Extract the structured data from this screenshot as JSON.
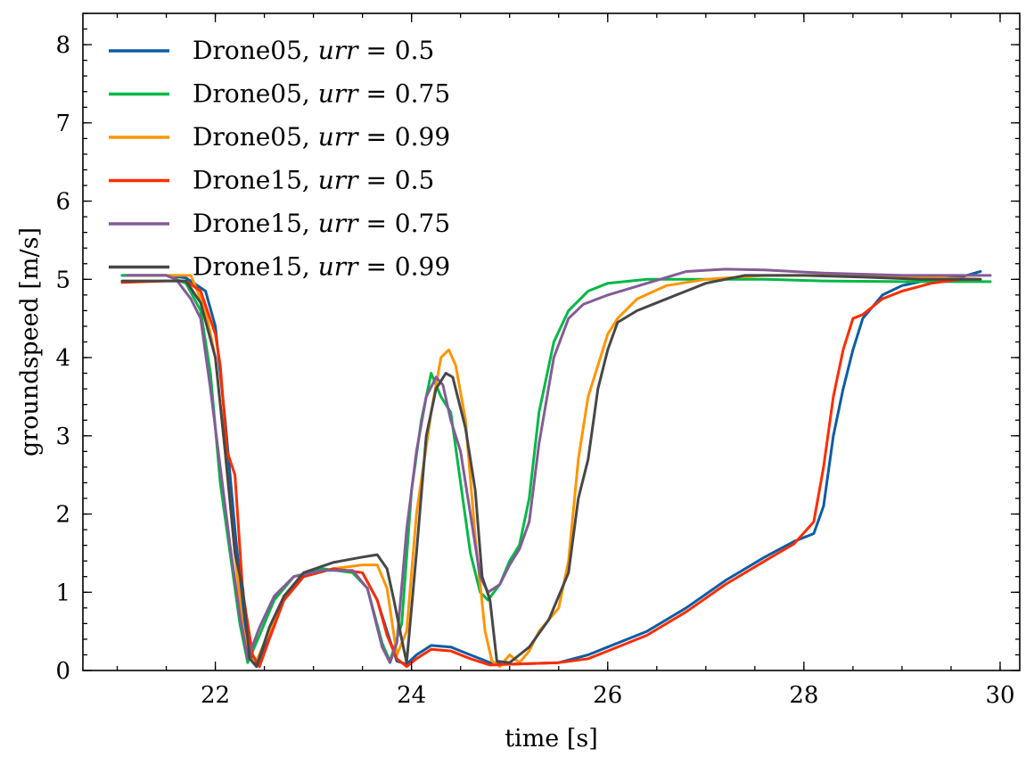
{
  "chart_data": {
    "type": "line",
    "title": "",
    "xlabel": "time [s]",
    "ylabel": "groundspeed [m/s]",
    "xlim": [
      20.65,
      30.2
    ],
    "ylim": [
      0,
      8.4
    ],
    "xticks": [
      22,
      24,
      26,
      28,
      30
    ],
    "yticks": [
      0,
      1,
      2,
      3,
      4,
      5,
      6,
      7,
      8
    ],
    "x_minor_step": 0.5,
    "y_minor_step": 0.2,
    "grid": false,
    "legend_position": "top-left",
    "series": [
      {
        "name": "Drone05, urr = 0.5",
        "legend_prefix": "Drone05, ",
        "legend_var": "urr",
        "legend_suffix": " = 0.5",
        "color": "#0C5DA5",
        "points": [
          [
            21.05,
            5.05
          ],
          [
            21.5,
            5.05
          ],
          [
            21.7,
            5.02
          ],
          [
            21.9,
            4.85
          ],
          [
            22.0,
            4.4
          ],
          [
            22.1,
            3.2
          ],
          [
            22.2,
            1.8
          ],
          [
            22.28,
            0.8
          ],
          [
            22.35,
            0.2
          ],
          [
            22.42,
            0.05
          ],
          [
            22.55,
            0.45
          ],
          [
            22.7,
            0.9
          ],
          [
            22.9,
            1.2
          ],
          [
            23.2,
            1.3
          ],
          [
            23.5,
            1.25
          ],
          [
            23.65,
            0.9
          ],
          [
            23.75,
            0.5
          ],
          [
            23.85,
            0.12
          ],
          [
            23.95,
            0.08
          ],
          [
            24.05,
            0.2
          ],
          [
            24.2,
            0.32
          ],
          [
            24.4,
            0.3
          ],
          [
            24.6,
            0.2
          ],
          [
            24.8,
            0.1
          ],
          [
            25.0,
            0.08
          ],
          [
            25.5,
            0.1
          ],
          [
            25.8,
            0.2
          ],
          [
            26.0,
            0.3
          ],
          [
            26.4,
            0.5
          ],
          [
            26.8,
            0.8
          ],
          [
            27.2,
            1.15
          ],
          [
            27.6,
            1.45
          ],
          [
            27.9,
            1.65
          ],
          [
            28.1,
            1.75
          ],
          [
            28.2,
            2.1
          ],
          [
            28.3,
            3.0
          ],
          [
            28.4,
            3.6
          ],
          [
            28.5,
            4.1
          ],
          [
            28.6,
            4.5
          ],
          [
            28.8,
            4.8
          ],
          [
            29.0,
            4.92
          ],
          [
            29.3,
            5.0
          ],
          [
            29.6,
            5.03
          ],
          [
            29.8,
            5.1
          ]
        ]
      },
      {
        "name": "Drone05, urr = 0.75",
        "legend_prefix": "Drone05, ",
        "legend_var": "urr",
        "legend_suffix": " = 0.75",
        "color": "#00B945",
        "points": [
          [
            21.05,
            5.05
          ],
          [
            21.5,
            5.05
          ],
          [
            21.7,
            4.95
          ],
          [
            21.85,
            4.6
          ],
          [
            21.95,
            3.8
          ],
          [
            22.05,
            2.4
          ],
          [
            22.15,
            1.5
          ],
          [
            22.25,
            0.6
          ],
          [
            22.33,
            0.1
          ],
          [
            22.45,
            0.45
          ],
          [
            22.6,
            0.9
          ],
          [
            22.8,
            1.2
          ],
          [
            23.1,
            1.3
          ],
          [
            23.4,
            1.25
          ],
          [
            23.55,
            1.05
          ],
          [
            23.7,
            0.35
          ],
          [
            23.78,
            0.12
          ],
          [
            23.9,
            0.6
          ],
          [
            24.0,
            2.3
          ],
          [
            24.1,
            3.2
          ],
          [
            24.2,
            3.8
          ],
          [
            24.3,
            3.5
          ],
          [
            24.4,
            3.3
          ],
          [
            24.5,
            2.4
          ],
          [
            24.6,
            1.5
          ],
          [
            24.7,
            1.0
          ],
          [
            24.78,
            0.9
          ],
          [
            24.9,
            1.1
          ],
          [
            25.0,
            1.4
          ],
          [
            25.1,
            1.6
          ],
          [
            25.2,
            2.2
          ],
          [
            25.3,
            3.3
          ],
          [
            25.45,
            4.2
          ],
          [
            25.6,
            4.6
          ],
          [
            25.8,
            4.85
          ],
          [
            26.0,
            4.95
          ],
          [
            26.4,
            5.0
          ],
          [
            27.0,
            5.0
          ],
          [
            27.6,
            5.0
          ],
          [
            28.2,
            4.98
          ],
          [
            29.0,
            4.97
          ],
          [
            29.9,
            4.97
          ]
        ]
      },
      {
        "name": "Drone05, urr = 0.99",
        "legend_prefix": "Drone05, ",
        "legend_var": "urr",
        "legend_suffix": " = 0.99",
        "color": "#FF9500",
        "points": [
          [
            21.1,
            5.05
          ],
          [
            21.5,
            5.05
          ],
          [
            21.75,
            5.05
          ],
          [
            21.9,
            4.6
          ],
          [
            22.0,
            4.0
          ],
          [
            22.1,
            2.8
          ],
          [
            22.2,
            1.5
          ],
          [
            22.28,
            0.55
          ],
          [
            22.35,
            0.15
          ],
          [
            22.42,
            0.12
          ],
          [
            22.55,
            0.5
          ],
          [
            22.7,
            0.95
          ],
          [
            22.9,
            1.2
          ],
          [
            23.2,
            1.3
          ],
          [
            23.5,
            1.35
          ],
          [
            23.65,
            1.35
          ],
          [
            23.75,
            1.05
          ],
          [
            23.85,
            0.2
          ],
          [
            23.95,
            0.5
          ],
          [
            24.05,
            2.0
          ],
          [
            24.2,
            3.3
          ],
          [
            24.3,
            4.0
          ],
          [
            24.38,
            4.1
          ],
          [
            24.45,
            3.9
          ],
          [
            24.55,
            3.2
          ],
          [
            24.65,
            1.7
          ],
          [
            24.75,
            0.5
          ],
          [
            24.82,
            0.12
          ],
          [
            24.9,
            0.05
          ],
          [
            25.0,
            0.2
          ],
          [
            25.1,
            0.1
          ],
          [
            25.2,
            0.25
          ],
          [
            25.3,
            0.5
          ],
          [
            25.5,
            0.8
          ],
          [
            25.6,
            1.4
          ],
          [
            25.7,
            2.7
          ],
          [
            25.8,
            3.5
          ],
          [
            25.9,
            3.9
          ],
          [
            26.0,
            4.3
          ],
          [
            26.1,
            4.5
          ],
          [
            26.3,
            4.75
          ],
          [
            26.6,
            4.92
          ],
          [
            27.0,
            5.0
          ],
          [
            27.6,
            5.05
          ],
          [
            28.2,
            5.05
          ],
          [
            29.0,
            5.03
          ],
          [
            29.8,
            5.0
          ]
        ]
      },
      {
        "name": "Drone15, urr = 0.5",
        "legend_prefix": "Drone15, ",
        "legend_var": "urr",
        "legend_suffix": " = 0.5",
        "color": "#FF2C00",
        "points": [
          [
            21.05,
            4.96
          ],
          [
            21.5,
            4.98
          ],
          [
            21.7,
            4.98
          ],
          [
            21.85,
            4.85
          ],
          [
            22.0,
            4.3
          ],
          [
            22.05,
            3.9
          ],
          [
            22.12,
            2.8
          ],
          [
            22.2,
            2.5
          ],
          [
            22.28,
            1.0
          ],
          [
            22.38,
            0.2
          ],
          [
            22.45,
            0.05
          ],
          [
            22.55,
            0.4
          ],
          [
            22.7,
            0.9
          ],
          [
            22.9,
            1.2
          ],
          [
            23.2,
            1.3
          ],
          [
            23.5,
            1.25
          ],
          [
            23.65,
            0.9
          ],
          [
            23.75,
            0.45
          ],
          [
            23.85,
            0.15
          ],
          [
            23.95,
            0.05
          ],
          [
            24.05,
            0.15
          ],
          [
            24.2,
            0.27
          ],
          [
            24.4,
            0.25
          ],
          [
            24.6,
            0.15
          ],
          [
            24.8,
            0.07
          ],
          [
            25.0,
            0.08
          ],
          [
            25.5,
            0.1
          ],
          [
            25.8,
            0.15
          ],
          [
            26.0,
            0.25
          ],
          [
            26.4,
            0.45
          ],
          [
            26.8,
            0.75
          ],
          [
            27.2,
            1.1
          ],
          [
            27.6,
            1.4
          ],
          [
            27.9,
            1.62
          ],
          [
            28.1,
            1.9
          ],
          [
            28.2,
            2.6
          ],
          [
            28.3,
            3.5
          ],
          [
            28.4,
            4.1
          ],
          [
            28.5,
            4.5
          ],
          [
            28.6,
            4.55
          ],
          [
            28.8,
            4.75
          ],
          [
            29.0,
            4.85
          ],
          [
            29.3,
            4.95
          ],
          [
            29.6,
            5.0
          ],
          [
            29.75,
            5.0
          ]
        ]
      },
      {
        "name": "Drone15, urr = 0.75",
        "legend_prefix": "Drone15, ",
        "legend_var": "urr",
        "legend_suffix": " = 0.75",
        "color": "#845B97",
        "points": [
          [
            21.1,
            5.05
          ],
          [
            21.5,
            5.05
          ],
          [
            21.6,
            5.0
          ],
          [
            21.75,
            4.75
          ],
          [
            21.85,
            4.5
          ],
          [
            21.95,
            3.6
          ],
          [
            22.05,
            2.6
          ],
          [
            22.15,
            1.6
          ],
          [
            22.25,
            0.7
          ],
          [
            22.33,
            0.15
          ],
          [
            22.45,
            0.55
          ],
          [
            22.6,
            0.95
          ],
          [
            22.8,
            1.2
          ],
          [
            23.1,
            1.28
          ],
          [
            23.4,
            1.28
          ],
          [
            23.55,
            1.05
          ],
          [
            23.7,
            0.3
          ],
          [
            23.78,
            0.1
          ],
          [
            23.85,
            0.35
          ],
          [
            23.95,
            1.8
          ],
          [
            24.05,
            2.8
          ],
          [
            24.15,
            3.5
          ],
          [
            24.25,
            3.75
          ],
          [
            24.32,
            3.65
          ],
          [
            24.4,
            3.2
          ],
          [
            24.5,
            2.8
          ],
          [
            24.6,
            2.0
          ],
          [
            24.7,
            1.2
          ],
          [
            24.78,
            1.0
          ],
          [
            24.9,
            1.1
          ],
          [
            25.0,
            1.35
          ],
          [
            25.1,
            1.55
          ],
          [
            25.2,
            1.9
          ],
          [
            25.3,
            2.9
          ],
          [
            25.45,
            4.0
          ],
          [
            25.6,
            4.5
          ],
          [
            25.75,
            4.68
          ],
          [
            26.0,
            4.8
          ],
          [
            26.4,
            4.95
          ],
          [
            26.8,
            5.1
          ],
          [
            27.2,
            5.13
          ],
          [
            27.6,
            5.12
          ],
          [
            28.2,
            5.08
          ],
          [
            29.0,
            5.05
          ],
          [
            29.9,
            5.05
          ]
        ]
      },
      {
        "name": "Drone15, urr = 0.99",
        "legend_prefix": "Drone15, ",
        "legend_var": "urr",
        "legend_suffix": " = 0.99",
        "color": "#474747",
        "points": [
          [
            21.05,
            4.98
          ],
          [
            21.5,
            4.98
          ],
          [
            21.7,
            4.98
          ],
          [
            21.85,
            4.7
          ],
          [
            22.0,
            4.0
          ],
          [
            22.1,
            2.8
          ],
          [
            22.2,
            1.5
          ],
          [
            22.28,
            1.05
          ],
          [
            22.35,
            0.15
          ],
          [
            22.42,
            0.05
          ],
          [
            22.55,
            0.55
          ],
          [
            22.7,
            0.95
          ],
          [
            22.9,
            1.25
          ],
          [
            23.2,
            1.38
          ],
          [
            23.5,
            1.45
          ],
          [
            23.65,
            1.48
          ],
          [
            23.75,
            1.3
          ],
          [
            23.82,
            0.9
          ],
          [
            23.9,
            0.4
          ],
          [
            23.95,
            0.1
          ],
          [
            24.05,
            1.5
          ],
          [
            24.15,
            3.0
          ],
          [
            24.25,
            3.6
          ],
          [
            24.35,
            3.8
          ],
          [
            24.42,
            3.75
          ],
          [
            24.55,
            3.1
          ],
          [
            24.65,
            2.3
          ],
          [
            24.72,
            1.2
          ],
          [
            24.8,
            0.9
          ],
          [
            24.87,
            0.12
          ],
          [
            25.0,
            0.1
          ],
          [
            25.1,
            0.2
          ],
          [
            25.2,
            0.3
          ],
          [
            25.4,
            0.65
          ],
          [
            25.5,
            0.95
          ],
          [
            25.6,
            1.25
          ],
          [
            25.7,
            2.2
          ],
          [
            25.8,
            2.7
          ],
          [
            25.9,
            3.6
          ],
          [
            26.0,
            4.1
          ],
          [
            26.1,
            4.45
          ],
          [
            26.3,
            4.6
          ],
          [
            26.6,
            4.75
          ],
          [
            27.0,
            4.95
          ],
          [
            27.4,
            5.05
          ],
          [
            28.0,
            5.05
          ],
          [
            28.6,
            5.03
          ],
          [
            29.2,
            5.0
          ],
          [
            29.8,
            5.0
          ]
        ]
      }
    ]
  }
}
